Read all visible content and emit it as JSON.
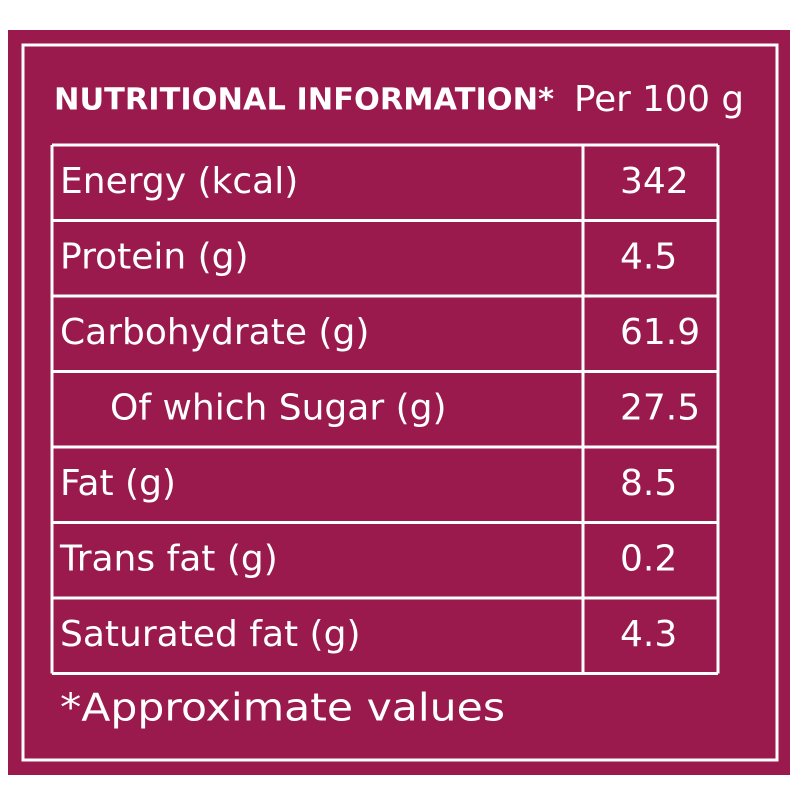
{
  "header": {
    "title": "NUTRITIONAL INFORMATION*",
    "unit": "Per 100 g"
  },
  "table": {
    "rows": [
      [
        "Energy (kcal)",
        342
      ],
      [
        "Protein (g)",
        4.5
      ],
      [
        "Carbohydrate (g)",
        61.9
      ],
      [
        "Of which Sugar (g)",
        27.5
      ],
      [
        "Fat (g)",
        8.5
      ],
      [
        "Trans fat (g)",
        0.2
      ],
      [
        "Saturated fat (g)",
        4.3
      ]
    ]
  },
  "footnote": "*Approximate values"
}
